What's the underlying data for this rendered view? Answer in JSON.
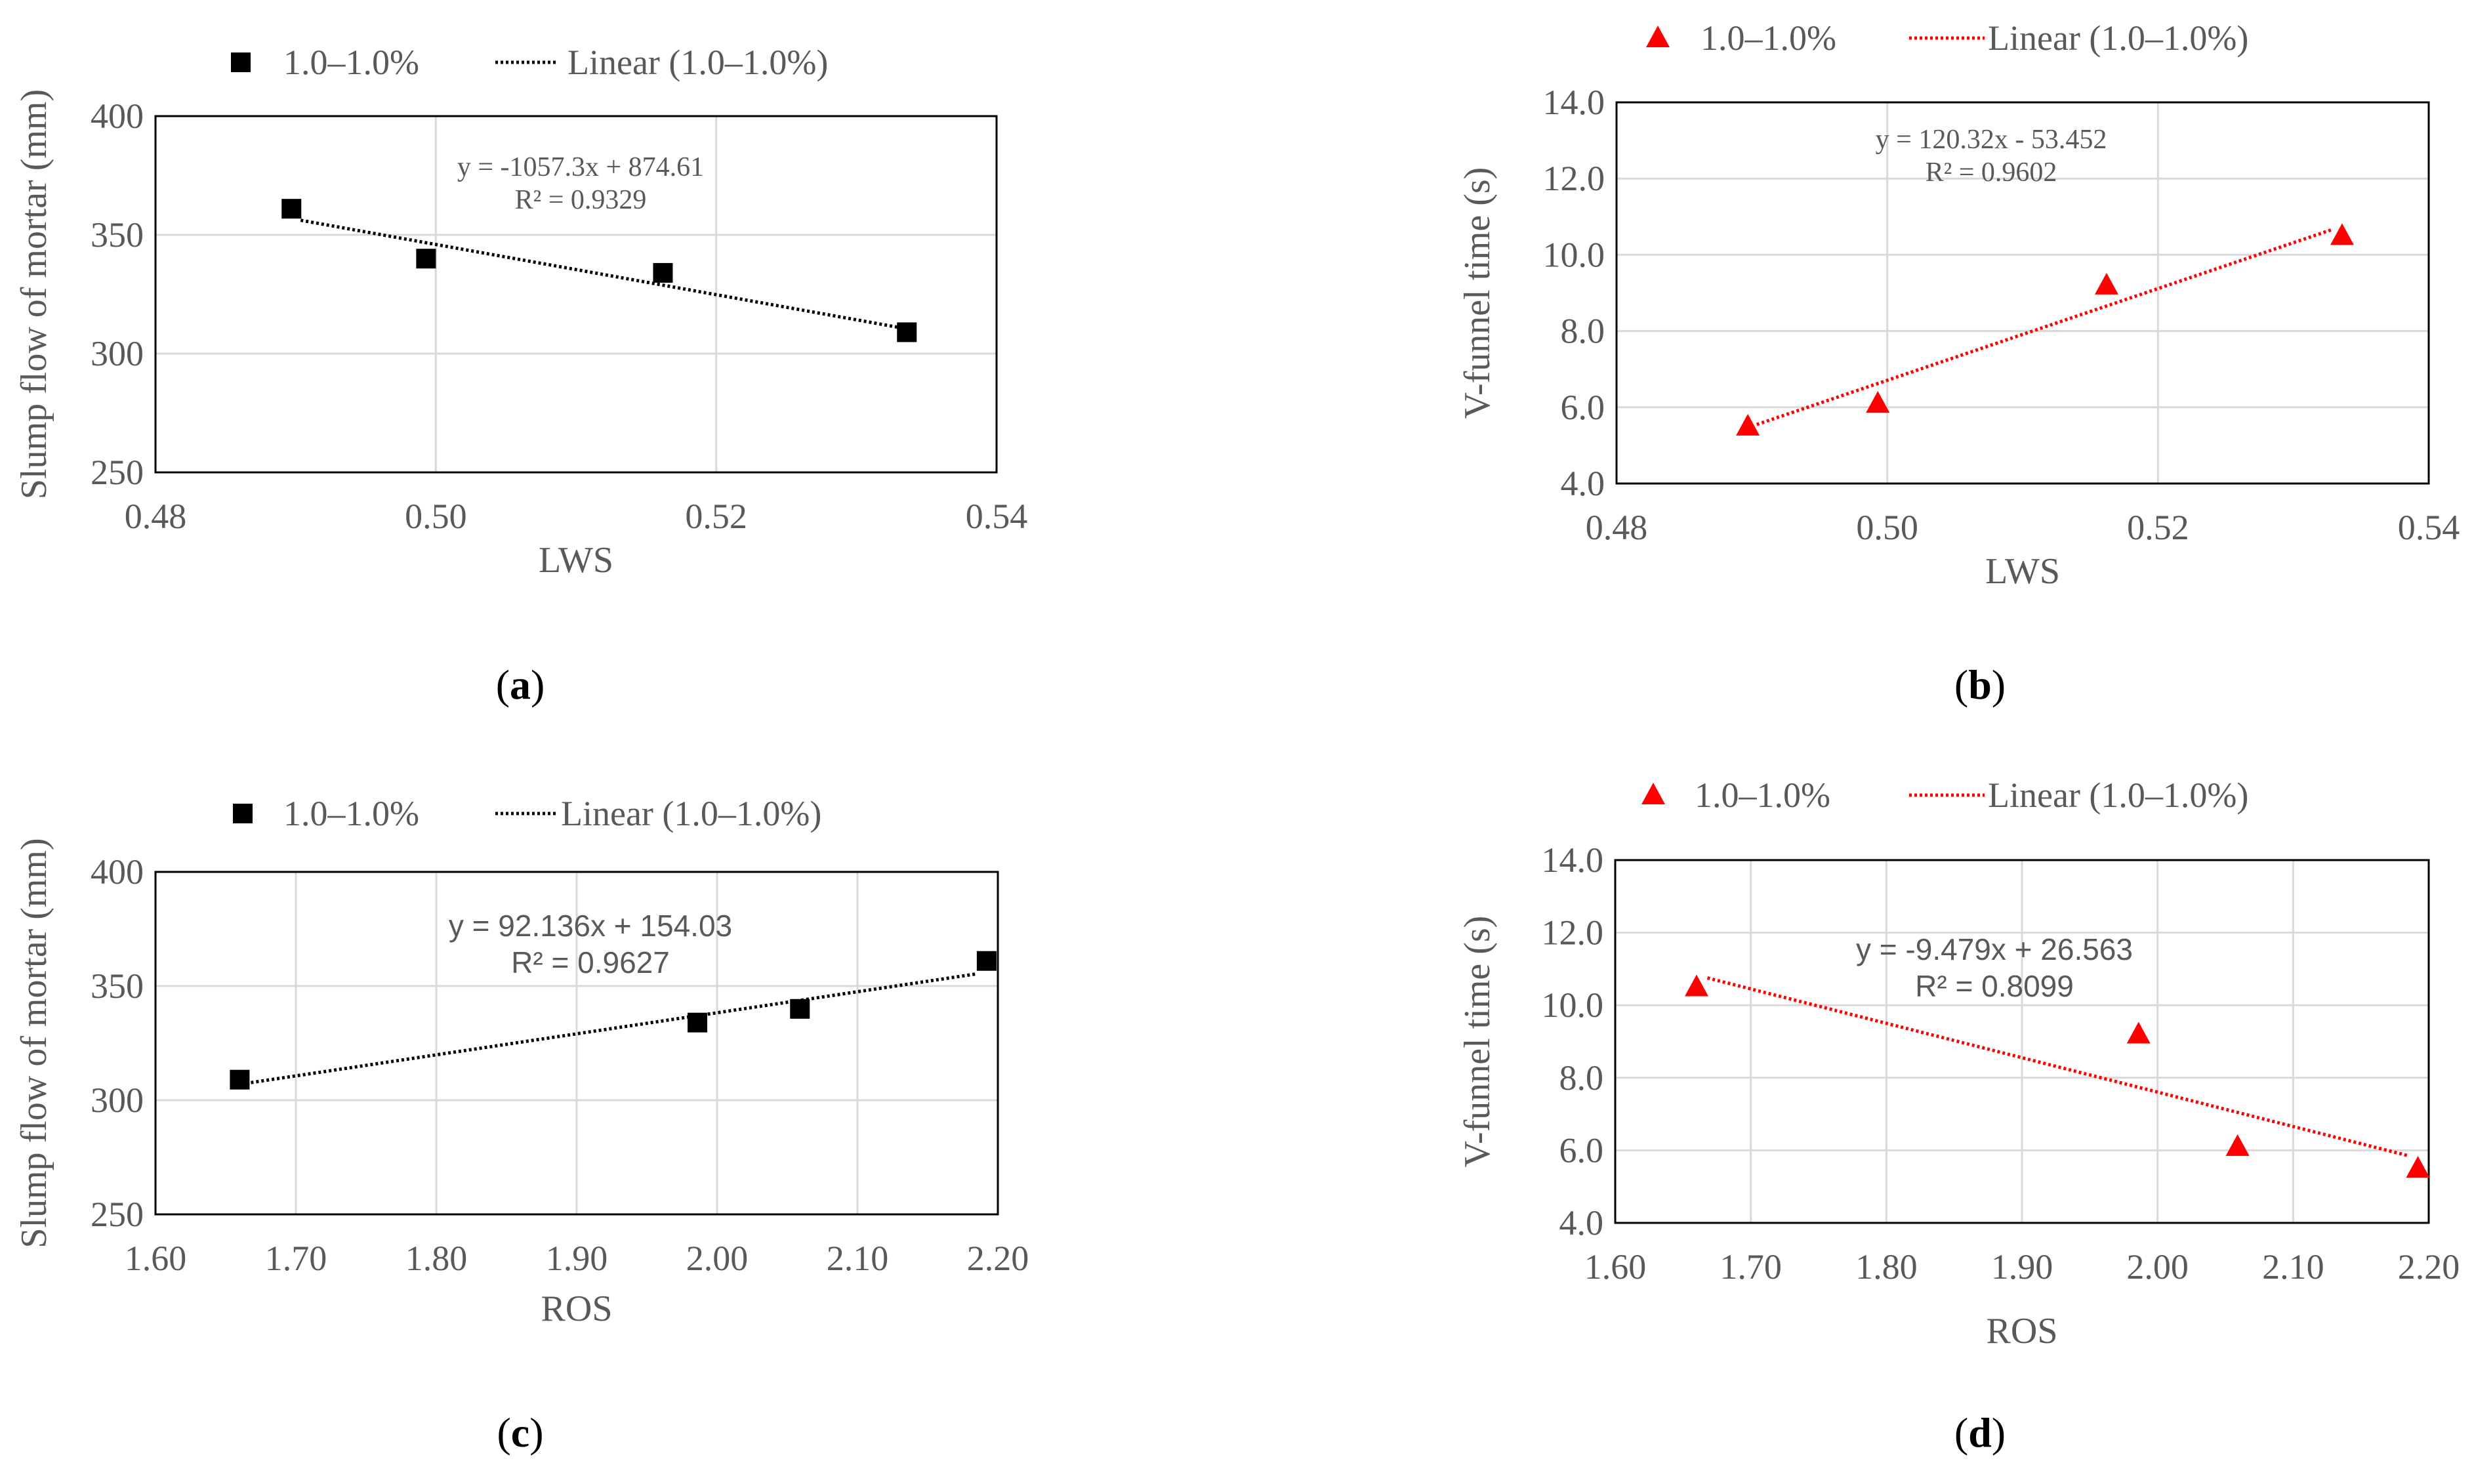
{
  "colors": {
    "black_series": "#000000",
    "red_series": "#ff0000",
    "axis_text": "#595959",
    "grid": "#d9d9d9"
  },
  "chart_data": [
    {
      "id": "a",
      "type": "scatter",
      "panel_label": "a",
      "xlabel": "LWS",
      "ylabel": "Slump flow of mortar (mm)",
      "xlim": [
        0.48,
        0.54
      ],
      "xticks": [
        0.48,
        0.5,
        0.52,
        0.54
      ],
      "xdecimals": 2,
      "ylim": [
        250,
        400
      ],
      "yticks": [
        250,
        300,
        350,
        400
      ],
      "ydecimals": 0,
      "series": [
        {
          "name": "1.0–1.0%",
          "marker": "square",
          "color": "#000000",
          "x": [
            0.4897,
            0.4993,
            0.5162,
            0.5336
          ],
          "y": [
            361,
            340,
            334,
            309
          ]
        }
      ],
      "trendline": {
        "name": "Linear (1.0–1.0%)",
        "slope": -1057.3,
        "intercept": 874.61,
        "color": "#000000",
        "equation": "y = -1057.3x + 874.61",
        "r2": "R² = 0.9329",
        "eq_style": "serif"
      },
      "grid": true,
      "legend_position": "top"
    },
    {
      "id": "b",
      "type": "scatter",
      "panel_label": "b",
      "xlabel": "LWS",
      "ylabel": "V-funnel time (s)",
      "xlim": [
        0.48,
        0.54
      ],
      "xticks": [
        0.48,
        0.5,
        0.52,
        0.54
      ],
      "xdecimals": 2,
      "ylim": [
        4.0,
        14.0
      ],
      "yticks": [
        4.0,
        6.0,
        8.0,
        10.0,
        12.0,
        14.0
      ],
      "ydecimals": 1,
      "series": [
        {
          "name": "1.0–1.0%",
          "marker": "triangle",
          "color": "#ff0000",
          "x": [
            0.4897,
            0.4993,
            0.5162,
            0.5336
          ],
          "y": [
            5.5,
            6.1,
            9.2,
            10.5
          ]
        }
      ],
      "trendline": {
        "name": "Linear (1.0–1.0%)",
        "slope": 120.32,
        "intercept": -53.452,
        "color": "#ff0000",
        "equation": "y = 120.32x - 53.452",
        "r2": "R² = 0.9602",
        "eq_style": "serif"
      },
      "grid": true,
      "legend_position": "top"
    },
    {
      "id": "c",
      "type": "scatter",
      "panel_label": "c",
      "xlabel": "ROS",
      "ylabel": "Slump flow of mortar (mm)",
      "xlim": [
        1.6,
        2.2
      ],
      "xticks": [
        1.6,
        1.7,
        1.8,
        1.9,
        2.0,
        2.1,
        2.2
      ],
      "xdecimals": 2,
      "ylim": [
        250,
        400
      ],
      "yticks": [
        250,
        300,
        350,
        400
      ],
      "ydecimals": 0,
      "series": [
        {
          "name": "1.0–1.0%",
          "marker": "square",
          "color": "#000000",
          "x": [
            1.66,
            1.986,
            2.059,
            2.192
          ],
          "y": [
            309,
            334,
            340,
            361
          ]
        }
      ],
      "trendline": {
        "name": "Linear (1.0–1.0%)",
        "slope": 92.136,
        "intercept": 154.03,
        "color": "#000000",
        "equation": "y = 92.136x + 154.03",
        "r2": "R² = 0.9627",
        "eq_style": "sans"
      },
      "grid": true,
      "legend_position": "top"
    },
    {
      "id": "d",
      "type": "scatter",
      "panel_label": "d",
      "xlabel": "ROS",
      "ylabel": "V-funnel time (s)",
      "xlim": [
        1.6,
        2.2
      ],
      "xticks": [
        1.6,
        1.7,
        1.8,
        1.9,
        2.0,
        2.1,
        2.2
      ],
      "xdecimals": 2,
      "ylim": [
        4.0,
        14.0
      ],
      "yticks": [
        4.0,
        6.0,
        8.0,
        10.0,
        12.0,
        14.0
      ],
      "ydecimals": 1,
      "series": [
        {
          "name": "1.0–1.0%",
          "marker": "triangle",
          "color": "#ff0000",
          "x": [
            1.66,
            1.986,
            2.059,
            2.192
          ],
          "y": [
            10.5,
            9.2,
            6.1,
            5.5
          ]
        }
      ],
      "trendline": {
        "name": "Linear (1.0–1.0%)",
        "slope": -9.479,
        "intercept": 26.563,
        "color": "#ff0000",
        "equation": "y = -9.479x + 26.563",
        "r2": "R² = 0.8099",
        "eq_style": "sans"
      },
      "grid": true,
      "legend_position": "top"
    }
  ]
}
